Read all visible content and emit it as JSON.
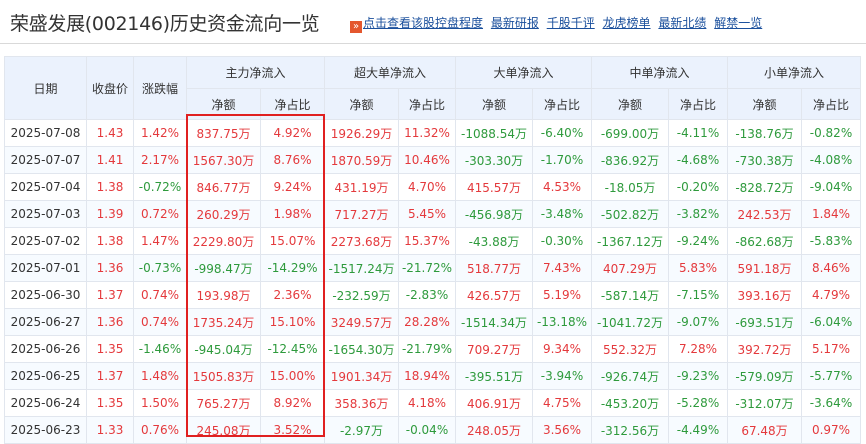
{
  "title": "荣盛发展(002146)历史资金流向一览",
  "links": {
    "icon_glyph": "»",
    "items": [
      "点击查看该股控盘程度",
      "最新研报",
      "千股千评",
      "龙虎榜单",
      "最新北绩",
      "解禁一览"
    ]
  },
  "colors": {
    "up": "#e4393c",
    "down": "#2e9a3c",
    "header_bg": "#ebf2fd",
    "highlight_border": "#e02020"
  },
  "table": {
    "group_headers": [
      "日期",
      "收盘价",
      "涨跌幅",
      "主力净流入",
      "超大单净流入",
      "大单净流入",
      "中单净流入",
      "小单净流入"
    ],
    "sub_headers": [
      "净额",
      "净占比",
      "净额",
      "净占比",
      "净额",
      "净占比",
      "净额",
      "净占比",
      "净额",
      "净占比"
    ],
    "rows": [
      [
        "2025-07-08",
        "1.43",
        "1.42%",
        "837.75万",
        "4.92%",
        "1926.29万",
        "11.32%",
        "-1088.54万",
        "-6.40%",
        "-699.00万",
        "-4.11%",
        "-138.76万",
        "-0.82%"
      ],
      [
        "2025-07-07",
        "1.41",
        "2.17%",
        "1567.30万",
        "8.76%",
        "1870.59万",
        "10.46%",
        "-303.30万",
        "-1.70%",
        "-836.92万",
        "-4.68%",
        "-730.38万",
        "-4.08%"
      ],
      [
        "2025-07-04",
        "1.38",
        "-0.72%",
        "846.77万",
        "9.24%",
        "431.19万",
        "4.70%",
        "415.57万",
        "4.53%",
        "-18.05万",
        "-0.20%",
        "-828.72万",
        "-9.04%"
      ],
      [
        "2025-07-03",
        "1.39",
        "0.72%",
        "260.29万",
        "1.98%",
        "717.27万",
        "5.45%",
        "-456.98万",
        "-3.48%",
        "-502.82万",
        "-3.82%",
        "242.53万",
        "1.84%"
      ],
      [
        "2025-07-02",
        "1.38",
        "1.47%",
        "2229.80万",
        "15.07%",
        "2273.68万",
        "15.37%",
        "-43.88万",
        "-0.30%",
        "-1367.12万",
        "-9.24%",
        "-862.68万",
        "-5.83%"
      ],
      [
        "2025-07-01",
        "1.36",
        "-0.73%",
        "-998.47万",
        "-14.29%",
        "-1517.24万",
        "-21.72%",
        "518.77万",
        "7.43%",
        "407.29万",
        "5.83%",
        "591.18万",
        "8.46%"
      ],
      [
        "2025-06-30",
        "1.37",
        "0.74%",
        "193.98万",
        "2.36%",
        "-232.59万",
        "-2.83%",
        "426.57万",
        "5.19%",
        "-587.14万",
        "-7.15%",
        "393.16万",
        "4.79%"
      ],
      [
        "2025-06-27",
        "1.36",
        "0.74%",
        "1735.24万",
        "15.10%",
        "3249.57万",
        "28.28%",
        "-1514.34万",
        "-13.18%",
        "-1041.72万",
        "-9.07%",
        "-693.51万",
        "-6.04%"
      ],
      [
        "2025-06-26",
        "1.35",
        "-1.46%",
        "-945.04万",
        "-12.45%",
        "-1654.30万",
        "-21.79%",
        "709.27万",
        "9.34%",
        "552.32万",
        "7.28%",
        "392.72万",
        "5.17%"
      ],
      [
        "2025-06-25",
        "1.37",
        "1.48%",
        "1505.83万",
        "15.00%",
        "1901.34万",
        "18.94%",
        "-395.51万",
        "-3.94%",
        "-926.74万",
        "-9.23%",
        "-579.09万",
        "-5.77%"
      ],
      [
        "2025-06-24",
        "1.35",
        "1.50%",
        "765.27万",
        "8.92%",
        "358.36万",
        "4.18%",
        "406.91万",
        "4.75%",
        "-453.20万",
        "-5.28%",
        "-312.07万",
        "-3.64%"
      ],
      [
        "2025-06-23",
        "1.33",
        "0.76%",
        "245.08万",
        "3.52%",
        "-2.97万",
        "-0.04%",
        "248.05万",
        "3.56%",
        "-312.56万",
        "-4.49%",
        "67.48万",
        "0.97%"
      ]
    ]
  }
}
